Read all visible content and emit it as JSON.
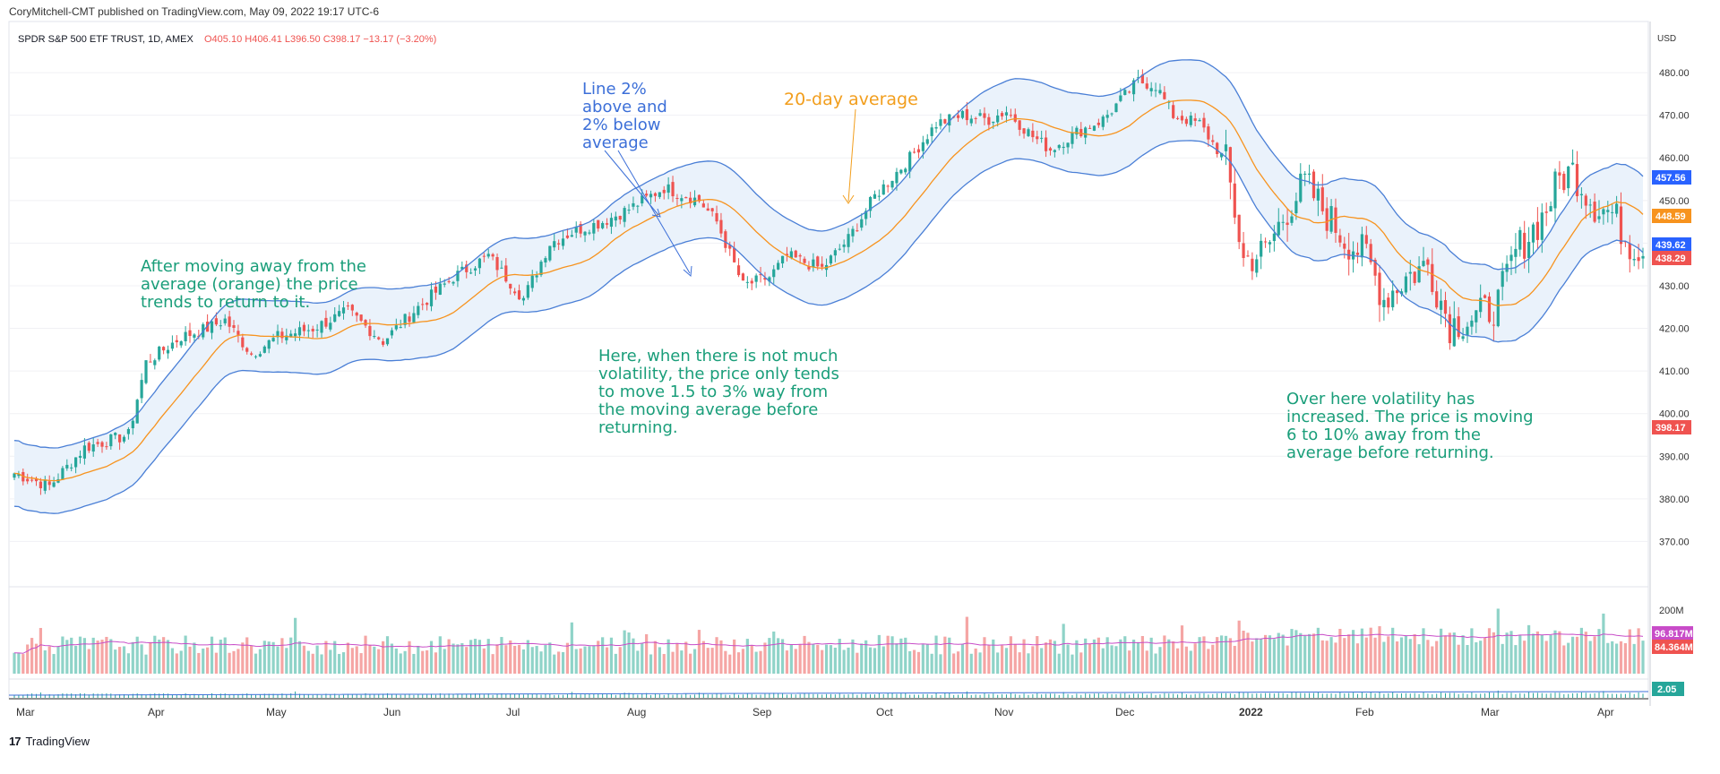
{
  "header": {
    "published": "CoryMitchell-CMT published on TradingView.com, May 09, 2022 19:17 UTC-6"
  },
  "footer": {
    "brand": "TradingView",
    "logo": "tradingview-logo-icon"
  },
  "colors": {
    "up": "#26a69a",
    "down": "#ef5350",
    "ma": "#f7931e",
    "band": "#4a7fd6",
    "band_fill": "#eaf2fb",
    "annotation_green": "#1a9e7a",
    "annotation_blue": "#3c6fd8",
    "annotation_orange": "#f29e1d",
    "vol_up": "#8fd3c8",
    "vol_down": "#f5a5a4",
    "vol_ma": "#c84cc8"
  },
  "legend": {
    "symbol": "SPDR S&P 500 ETF TRUST, 1D, AMEX",
    "open": "O405.10",
    "high": "H406.41",
    "low": "L396.50",
    "close": "C398.17",
    "change": "−13.17 (−3.20%)"
  },
  "annotations": {
    "bands": [
      "Line 2%",
      "above and",
      "2% below",
      "average"
    ],
    "ma": [
      "20-day average"
    ],
    "left": [
      "After moving away from the",
      "average (orange) the price",
      "trends to return to it."
    ],
    "middle": [
      "Here, when there is not much",
      "volatility, the price only tends",
      "to move 1.5 to 3% way from",
      "the moving average before",
      "returning."
    ],
    "right": [
      "Over here volatility has",
      "increased. The price is moving",
      "6 to 10% away from the",
      "average before returning."
    ]
  },
  "chart_data": {
    "type": "candlestick",
    "instrument": "SPDR S&P 500 ETF TRUST",
    "timeframe": "1D",
    "currency": "USD",
    "y_axis": {
      "ticks": [
        "370.00",
        "380.00",
        "390.00",
        "400.00",
        "410.00",
        "420.00",
        "430.00",
        "440.00",
        "450.00",
        "460.00",
        "470.00",
        "480.00"
      ],
      "ylim": [
        360,
        492
      ]
    },
    "x_axis": {
      "labels": [
        "Mar",
        "Apr",
        "May",
        "Jun",
        "Jul",
        "Aug",
        "Sep",
        "Oct",
        "Nov",
        "Dec",
        "2022",
        "Feb",
        "Mar",
        "Apr"
      ],
      "bold_label": "2022"
    },
    "price_path": [
      [
        0,
        386
      ],
      [
        8,
        383
      ],
      [
        16,
        392
      ],
      [
        26,
        395
      ],
      [
        30,
        412
      ],
      [
        38,
        418
      ],
      [
        44,
        420
      ],
      [
        48,
        422
      ],
      [
        54,
        414
      ],
      [
        60,
        418
      ],
      [
        68,
        420
      ],
      [
        76,
        424
      ],
      [
        84,
        417
      ],
      [
        92,
        425
      ],
      [
        100,
        432
      ],
      [
        108,
        437
      ],
      [
        116,
        427
      ],
      [
        122,
        440
      ],
      [
        128,
        443
      ],
      [
        134,
        445
      ],
      [
        140,
        448
      ],
      [
        148,
        453
      ],
      [
        156,
        450
      ],
      [
        160,
        445
      ],
      [
        166,
        430
      ],
      [
        172,
        432
      ],
      [
        176,
        437
      ],
      [
        184,
        434
      ],
      [
        190,
        441
      ],
      [
        196,
        451
      ],
      [
        204,
        460
      ],
      [
        210,
        468
      ],
      [
        216,
        470
      ],
      [
        222,
        469
      ],
      [
        226,
        471
      ],
      [
        232,
        465
      ],
      [
        236,
        462
      ],
      [
        242,
        466
      ],
      [
        248,
        469
      ],
      [
        256,
        478
      ],
      [
        260,
        477
      ],
      [
        264,
        470
      ],
      [
        270,
        468
      ],
      [
        276,
        459
      ],
      [
        280,
        436
      ],
      [
        285,
        438
      ],
      [
        290,
        448
      ],
      [
        294,
        454
      ],
      [
        298,
        448
      ],
      [
        303,
        441
      ],
      [
        308,
        437
      ],
      [
        312,
        427
      ],
      [
        317,
        432
      ],
      [
        322,
        435
      ],
      [
        327,
        421
      ],
      [
        334,
        423
      ],
      [
        338,
        426
      ],
      [
        342,
        438
      ],
      [
        348,
        446
      ],
      [
        352,
        455
      ],
      [
        355,
        457
      ],
      [
        360,
        449
      ],
      [
        364,
        447
      ],
      [
        368,
        440
      ],
      [
        371,
        438.5
      ]
    ],
    "band_pct": 0.02,
    "ma_period": 20,
    "last_price_labels": [
      {
        "value": "457.56",
        "color": "#2962ff"
      },
      {
        "value": "448.59",
        "color": "#f7931e"
      },
      {
        "value": "439.62",
        "color": "#2962ff"
      },
      {
        "value": "438.29",
        "color": "#ef5350"
      },
      {
        "value": "398.17",
        "color": "#ef5350"
      }
    ],
    "volume": {
      "axis_label": "200M",
      "last_labels": [
        {
          "value": "96.817M",
          "color": "#c84cc8"
        },
        {
          "value": "84.364M",
          "color": "#ef5350"
        }
      ]
    },
    "lower_indicator": {
      "last_label": "2.05",
      "color": "#26a69a"
    }
  }
}
